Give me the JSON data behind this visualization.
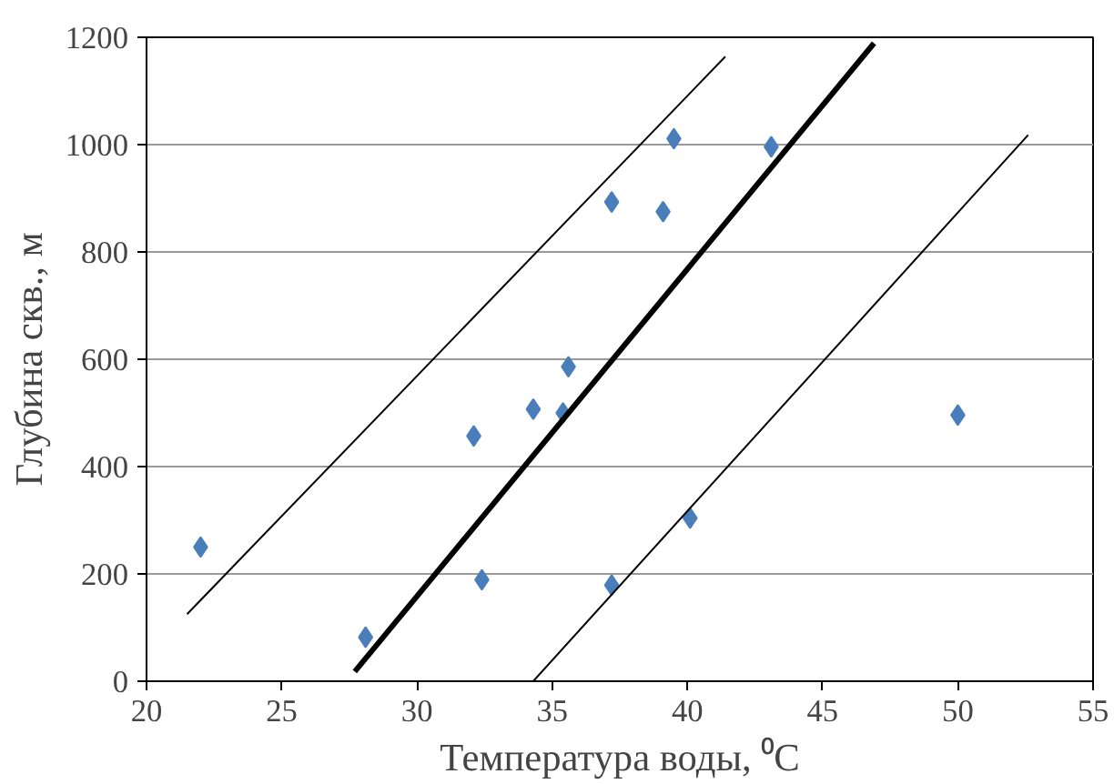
{
  "chart_data": {
    "type": "scatter",
    "xlabel": "Температура воды, ⁰C",
    "ylabel": "Глубина скв., м",
    "xlim": [
      20,
      55
    ],
    "ylim": [
      0,
      1200
    ],
    "xticks": [
      20,
      25,
      30,
      35,
      40,
      45,
      50,
      55
    ],
    "yticks": [
      0,
      200,
      400,
      600,
      800,
      1000,
      1200
    ],
    "grid": "y",
    "series": [
      {
        "marker": "diamond",
        "color": "#4a7ebb",
        "x": [
          22,
          28.1,
          32.4,
          32.1,
          34.3,
          35.4,
          35.6,
          37.2,
          37.2,
          39.1,
          39.5,
          43.1,
          40.1,
          50
        ],
        "values": [
          250,
          82,
          189,
          457,
          507,
          500,
          586,
          179,
          893,
          875,
          1011,
          996,
          304,
          496
        ]
      },
      {
        "type": "line",
        "marker": "none",
        "color": "#000000",
        "x": [
          21.5,
          41.4
        ],
        "values": [
          125,
          1164
        ]
      },
      {
        "type": "line",
        "marker": "none",
        "color": "#000000",
        "x": [
          27.7,
          46.9
        ],
        "values": [
          18,
          1189
        ]
      },
      {
        "type": "line",
        "marker": "none",
        "color": "#000000",
        "x": [
          34.3,
          52.6
        ],
        "values": [
          0,
          1018
        ]
      }
    ]
  }
}
